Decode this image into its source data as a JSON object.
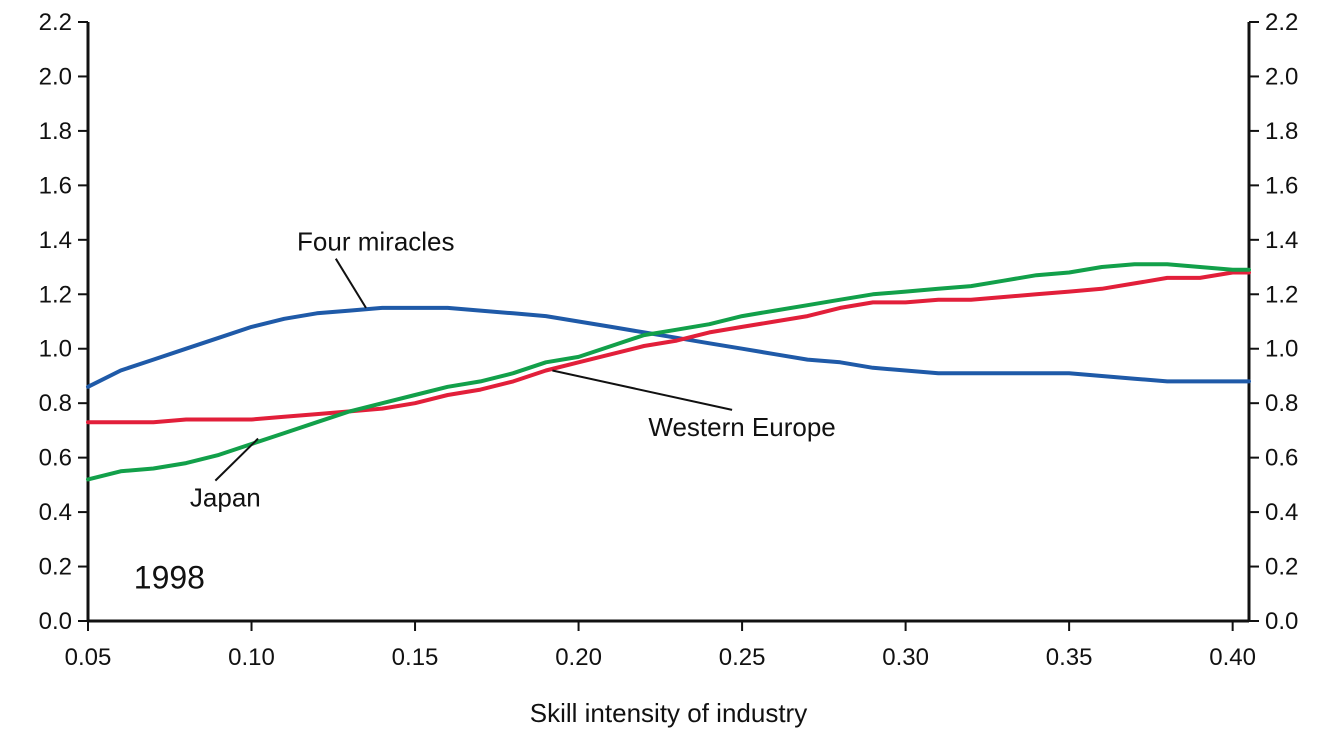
{
  "chart_data": {
    "type": "line",
    "xlabel": "Skill intensity of industry",
    "ylabel": "",
    "annotation": "1998",
    "xlim": [
      0.05,
      0.405
    ],
    "ylim": [
      0,
      2.2
    ],
    "x_ticks": [
      "0.05",
      "0.10",
      "0.15",
      "0.20",
      "0.25",
      "0.30",
      "0.35",
      "0.40"
    ],
    "x_tick_values": [
      0.05,
      0.1,
      0.15,
      0.2,
      0.25,
      0.3,
      0.35,
      0.4
    ],
    "y_ticks": [
      "0.0",
      "0.2",
      "0.4",
      "0.6",
      "0.8",
      "1.0",
      "1.2",
      "1.4",
      "1.6",
      "1.8",
      "2.0",
      "2.2"
    ],
    "y_tick_values": [
      0.0,
      0.2,
      0.4,
      0.6,
      0.8,
      1.0,
      1.2,
      1.4,
      1.6,
      1.8,
      2.0,
      2.2
    ],
    "grid": false,
    "right_axis": true,
    "series": [
      {
        "name": "Four miracles",
        "color": "#1f5aa8",
        "x": [
          0.05,
          0.06,
          0.07,
          0.08,
          0.09,
          0.1,
          0.11,
          0.12,
          0.13,
          0.14,
          0.15,
          0.16,
          0.17,
          0.18,
          0.19,
          0.2,
          0.21,
          0.22,
          0.23,
          0.24,
          0.25,
          0.26,
          0.27,
          0.28,
          0.29,
          0.3,
          0.31,
          0.32,
          0.33,
          0.34,
          0.35,
          0.36,
          0.37,
          0.38,
          0.39,
          0.4,
          0.405
        ],
        "y": [
          0.86,
          0.92,
          0.96,
          1.0,
          1.04,
          1.08,
          1.11,
          1.13,
          1.14,
          1.15,
          1.15,
          1.15,
          1.14,
          1.13,
          1.12,
          1.1,
          1.08,
          1.06,
          1.04,
          1.02,
          1.0,
          0.98,
          0.96,
          0.95,
          0.93,
          0.92,
          0.91,
          0.91,
          0.91,
          0.91,
          0.91,
          0.9,
          0.89,
          0.88,
          0.88,
          0.88,
          0.88
        ]
      },
      {
        "name": "Western Europe",
        "color": "#e21f3a",
        "x": [
          0.05,
          0.06,
          0.07,
          0.08,
          0.09,
          0.1,
          0.11,
          0.12,
          0.13,
          0.14,
          0.15,
          0.16,
          0.17,
          0.18,
          0.19,
          0.2,
          0.21,
          0.22,
          0.23,
          0.24,
          0.25,
          0.26,
          0.27,
          0.28,
          0.29,
          0.3,
          0.31,
          0.32,
          0.33,
          0.34,
          0.35,
          0.36,
          0.37,
          0.38,
          0.39,
          0.4,
          0.405
        ],
        "y": [
          0.73,
          0.73,
          0.73,
          0.74,
          0.74,
          0.74,
          0.75,
          0.76,
          0.77,
          0.78,
          0.8,
          0.83,
          0.85,
          0.88,
          0.92,
          0.95,
          0.98,
          1.01,
          1.03,
          1.06,
          1.08,
          1.1,
          1.12,
          1.15,
          1.17,
          1.17,
          1.18,
          1.18,
          1.19,
          1.2,
          1.21,
          1.22,
          1.24,
          1.26,
          1.26,
          1.28,
          1.28
        ]
      },
      {
        "name": "Japan",
        "color": "#12a04a",
        "x": [
          0.05,
          0.06,
          0.07,
          0.08,
          0.09,
          0.1,
          0.11,
          0.12,
          0.13,
          0.14,
          0.15,
          0.16,
          0.17,
          0.18,
          0.19,
          0.2,
          0.21,
          0.22,
          0.23,
          0.24,
          0.25,
          0.26,
          0.27,
          0.28,
          0.29,
          0.3,
          0.31,
          0.32,
          0.33,
          0.34,
          0.35,
          0.36,
          0.37,
          0.38,
          0.39,
          0.4,
          0.405
        ],
        "y": [
          0.52,
          0.55,
          0.56,
          0.58,
          0.61,
          0.65,
          0.69,
          0.73,
          0.77,
          0.8,
          0.83,
          0.86,
          0.88,
          0.91,
          0.95,
          0.97,
          1.01,
          1.05,
          1.07,
          1.09,
          1.12,
          1.14,
          1.16,
          1.18,
          1.2,
          1.21,
          1.22,
          1.23,
          1.25,
          1.27,
          1.28,
          1.3,
          1.31,
          1.31,
          1.3,
          1.29,
          1.29
        ]
      }
    ],
    "annotations": [
      {
        "text": "Four miracles",
        "series": "Four miracles",
        "point_x": 0.135,
        "point_y": 1.15,
        "text_x": 0.138,
        "text_y": 1.36
      },
      {
        "text": "Western Europe",
        "series": "Western Europe",
        "point_x": 0.192,
        "point_y": 0.92,
        "text_x": 0.25,
        "text_y": 0.68
      },
      {
        "text": "Japan",
        "series": "Japan",
        "point_x": 0.102,
        "point_y": 0.67,
        "text_x": 0.092,
        "text_y": 0.42
      }
    ]
  }
}
